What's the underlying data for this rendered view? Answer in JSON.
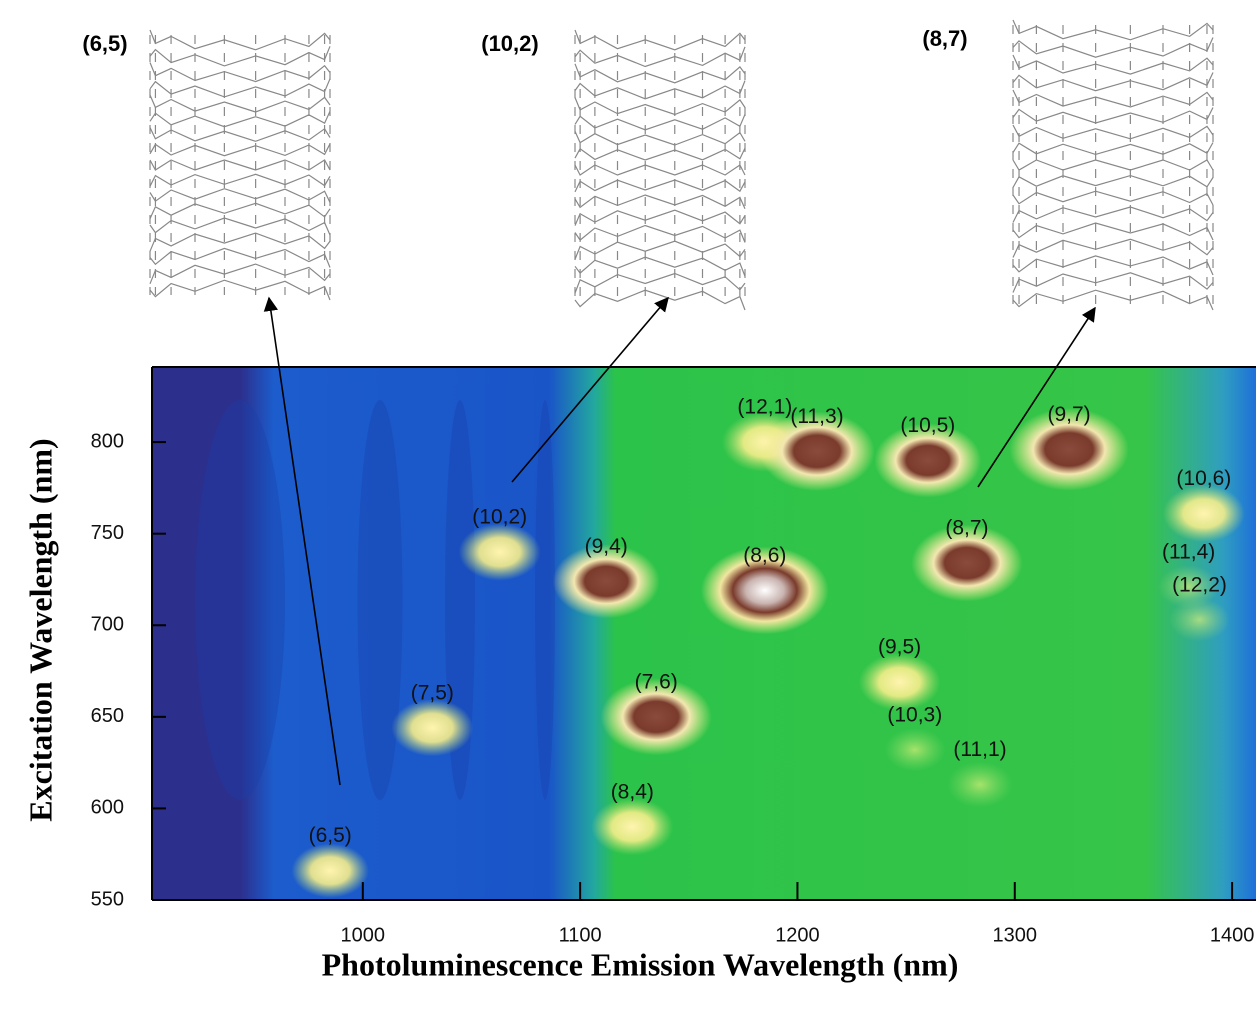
{
  "chart_data": {
    "type": "pl-map",
    "structures": [
      "(6,5)",
      "(10,2)",
      "(8,7)"
    ],
    "xlabel": "Photoluminescence Emission Wavelength (nm)",
    "ylabel": "Excitation Wavelength (nm)",
    "xlim": [
      903,
      1411
    ],
    "ylim": [
      550,
      841
    ],
    "xticks": [
      1000,
      1100,
      1200,
      1300,
      1400
    ],
    "yticks": [
      550,
      600,
      650,
      700,
      750,
      800
    ],
    "peaks": {
      "labels": [
        "(6,5)",
        "(7,5)",
        "(10,2)",
        "(9,4)",
        "(8,6)",
        "(7,6)",
        "(8,4)",
        "(12,1)",
        "(11,3)",
        "(10,5)",
        "(9,7)",
        "(8,7)",
        "(10,6)",
        "(11,4)",
        "(12,2)",
        "(9,5)",
        "(10,3)",
        "(11,1)"
      ],
      "x": [
        985,
        1032,
        1063,
        1112,
        1185,
        1135,
        1124,
        1185,
        1209,
        1260,
        1325,
        1278,
        1387,
        1380,
        1385,
        1247,
        1254,
        1284
      ],
      "y": [
        566,
        644,
        740,
        724,
        719,
        650,
        590,
        800,
        795,
        790,
        796,
        734,
        761,
        721,
        703,
        669,
        632,
        613
      ],
      "intensity": [
        0.4,
        0.45,
        0.45,
        0.75,
        1.0,
        0.8,
        0.45,
        0.5,
        0.85,
        0.75,
        0.9,
        0.8,
        0.45,
        0.2,
        0.2,
        0.45,
        0.2,
        0.25
      ]
    }
  }
}
